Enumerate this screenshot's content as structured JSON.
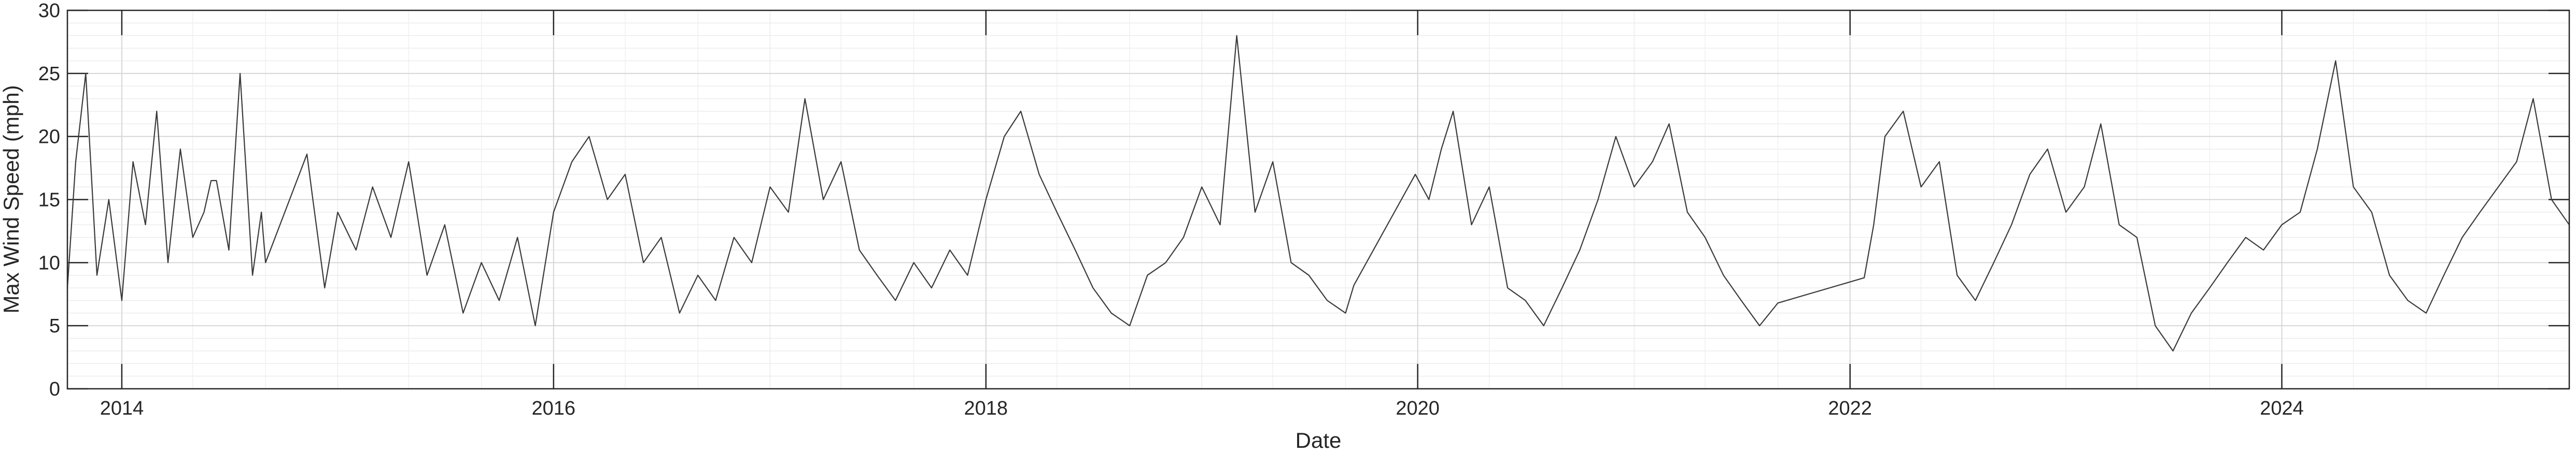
{
  "chart_data": {
    "type": "line",
    "xlabel": "Date",
    "ylabel": "Max Wind Speed (mph)",
    "x_range": [
      "2013-10-01",
      "2025-05-01"
    ],
    "ylim": [
      0,
      30
    ],
    "x_ticks": [
      "2014",
      "2016",
      "2018",
      "2020",
      "2022",
      "2024"
    ],
    "y_ticks": [
      0,
      5,
      10,
      15,
      20,
      25,
      30
    ],
    "grid": "on (major and minor, light gray)",
    "line_color": "#3a3a3a",
    "series": [
      {
        "points": [
          [
            "2013-10-01",
            8
          ],
          [
            "2013-10-15",
            18
          ],
          [
            "2013-11-01",
            25
          ],
          [
            "2013-11-20",
            9
          ],
          [
            "2013-12-10",
            15
          ],
          [
            "2014-01-01",
            7
          ],
          [
            "2014-01-20",
            18
          ],
          [
            "2014-02-10",
            13
          ],
          [
            "2014-03-01",
            22
          ],
          [
            "2014-03-20",
            10
          ],
          [
            "2014-04-10",
            19
          ],
          [
            "2014-05-01",
            12
          ],
          [
            "2014-05-20",
            14
          ],
          [
            "2014-06-01",
            16.5
          ],
          [
            "2014-06-10",
            16.5
          ],
          [
            "2014-07-01",
            11
          ],
          [
            "2014-07-20",
            25
          ],
          [
            "2014-08-10",
            9
          ],
          [
            "2014-08-25",
            14
          ],
          [
            "2014-09-01",
            10
          ],
          [
            "2014-11-10",
            18.6
          ],
          [
            "2014-11-20",
            15
          ],
          [
            "2014-12-10",
            8
          ],
          [
            "2015-01-01",
            14
          ],
          [
            "2015-02-01",
            11
          ],
          [
            "2015-03-01",
            16
          ],
          [
            "2015-04-01",
            12
          ],
          [
            "2015-05-01",
            18
          ],
          [
            "2015-06-01",
            9
          ],
          [
            "2015-07-01",
            13
          ],
          [
            "2015-08-01",
            6
          ],
          [
            "2015-09-01",
            10
          ],
          [
            "2015-10-01",
            7
          ],
          [
            "2015-11-01",
            12
          ],
          [
            "2015-12-01",
            5
          ],
          [
            "2016-01-01",
            14
          ],
          [
            "2016-02-01",
            18
          ],
          [
            "2016-03-01",
            20
          ],
          [
            "2016-04-01",
            15
          ],
          [
            "2016-05-01",
            17
          ],
          [
            "2016-06-01",
            10
          ],
          [
            "2016-07-01",
            12
          ],
          [
            "2016-08-01",
            6
          ],
          [
            "2016-09-01",
            9
          ],
          [
            "2016-10-01",
            7
          ],
          [
            "2016-11-01",
            12
          ],
          [
            "2016-12-01",
            10
          ],
          [
            "2017-01-01",
            16
          ],
          [
            "2017-02-01",
            14
          ],
          [
            "2017-03-01",
            23
          ],
          [
            "2017-04-01",
            15
          ],
          [
            "2017-05-01",
            18
          ],
          [
            "2017-06-01",
            11
          ],
          [
            "2017-07-01",
            9
          ],
          [
            "2017-08-01",
            7
          ],
          [
            "2017-09-01",
            10
          ],
          [
            "2017-10-01",
            8
          ],
          [
            "2017-11-01",
            11
          ],
          [
            "2017-12-01",
            9
          ],
          [
            "2018-01-01",
            15
          ],
          [
            "2018-02-01",
            20
          ],
          [
            "2018-03-01",
            22
          ],
          [
            "2018-04-01",
            17
          ],
          [
            "2018-05-01",
            14
          ],
          [
            "2018-06-01",
            11
          ],
          [
            "2018-07-01",
            8
          ],
          [
            "2018-08-01",
            6
          ],
          [
            "2018-09-01",
            5
          ],
          [
            "2018-10-01",
            9
          ],
          [
            "2018-11-01",
            10
          ],
          [
            "2018-12-01",
            12
          ],
          [
            "2019-01-01",
            16
          ],
          [
            "2019-02-01",
            13
          ],
          [
            "2019-03-01",
            28
          ],
          [
            "2019-04-01",
            14
          ],
          [
            "2019-05-01",
            18
          ],
          [
            "2019-06-01",
            10
          ],
          [
            "2019-07-01",
            9
          ],
          [
            "2019-08-01",
            7
          ],
          [
            "2019-09-01",
            6
          ],
          [
            "2019-09-15",
            8.2
          ],
          [
            "2019-12-28",
            17
          ],
          [
            "2020-01-20",
            15
          ],
          [
            "2020-02-10",
            19
          ],
          [
            "2020-03-01",
            22
          ],
          [
            "2020-04-01",
            13
          ],
          [
            "2020-05-01",
            16
          ],
          [
            "2020-06-01",
            8
          ],
          [
            "2020-07-01",
            7
          ],
          [
            "2020-08-01",
            5
          ],
          [
            "2020-09-01",
            8
          ],
          [
            "2020-10-01",
            11
          ],
          [
            "2020-11-01",
            15
          ],
          [
            "2020-12-01",
            20
          ],
          [
            "2021-01-01",
            16
          ],
          [
            "2021-02-01",
            18
          ],
          [
            "2021-03-01",
            21
          ],
          [
            "2021-04-01",
            14
          ],
          [
            "2021-05-01",
            12
          ],
          [
            "2021-06-01",
            9
          ],
          [
            "2021-07-01",
            7
          ],
          [
            "2021-08-01",
            5
          ],
          [
            "2021-09-01",
            6.8
          ],
          [
            "2022-01-25",
            8.8
          ],
          [
            "2022-02-10",
            13
          ],
          [
            "2022-03-01",
            20
          ],
          [
            "2022-04-01",
            22
          ],
          [
            "2022-05-01",
            16
          ],
          [
            "2022-06-01",
            18
          ],
          [
            "2022-07-01",
            9
          ],
          [
            "2022-08-01",
            7
          ],
          [
            "2022-09-01",
            10
          ],
          [
            "2022-10-01",
            13
          ],
          [
            "2022-11-01",
            17
          ],
          [
            "2022-12-01",
            19
          ],
          [
            "2023-01-01",
            14
          ],
          [
            "2023-02-01",
            16
          ],
          [
            "2023-03-01",
            21
          ],
          [
            "2023-04-01",
            13
          ],
          [
            "2023-05-01",
            12
          ],
          [
            "2023-06-01",
            5
          ],
          [
            "2023-07-01",
            3
          ],
          [
            "2023-08-01",
            6
          ],
          [
            "2023-09-01",
            8
          ],
          [
            "2023-10-01",
            10
          ],
          [
            "2023-11-01",
            12
          ],
          [
            "2023-12-01",
            11
          ],
          [
            "2024-01-01",
            13
          ],
          [
            "2024-02-01",
            14
          ],
          [
            "2024-03-01",
            19
          ],
          [
            "2024-04-01",
            26
          ],
          [
            "2024-05-01",
            16
          ],
          [
            "2024-06-01",
            14
          ],
          [
            "2024-07-01",
            9
          ],
          [
            "2024-08-01",
            7
          ],
          [
            "2024-09-01",
            6
          ],
          [
            "2024-10-01",
            9
          ],
          [
            "2024-11-01",
            12
          ],
          [
            "2024-12-01",
            14
          ],
          [
            "2025-01-01",
            16
          ],
          [
            "2025-02-01",
            18
          ],
          [
            "2025-03-01",
            23
          ],
          [
            "2025-04-01",
            15
          ],
          [
            "2025-05-01",
            13
          ]
        ]
      }
    ]
  }
}
